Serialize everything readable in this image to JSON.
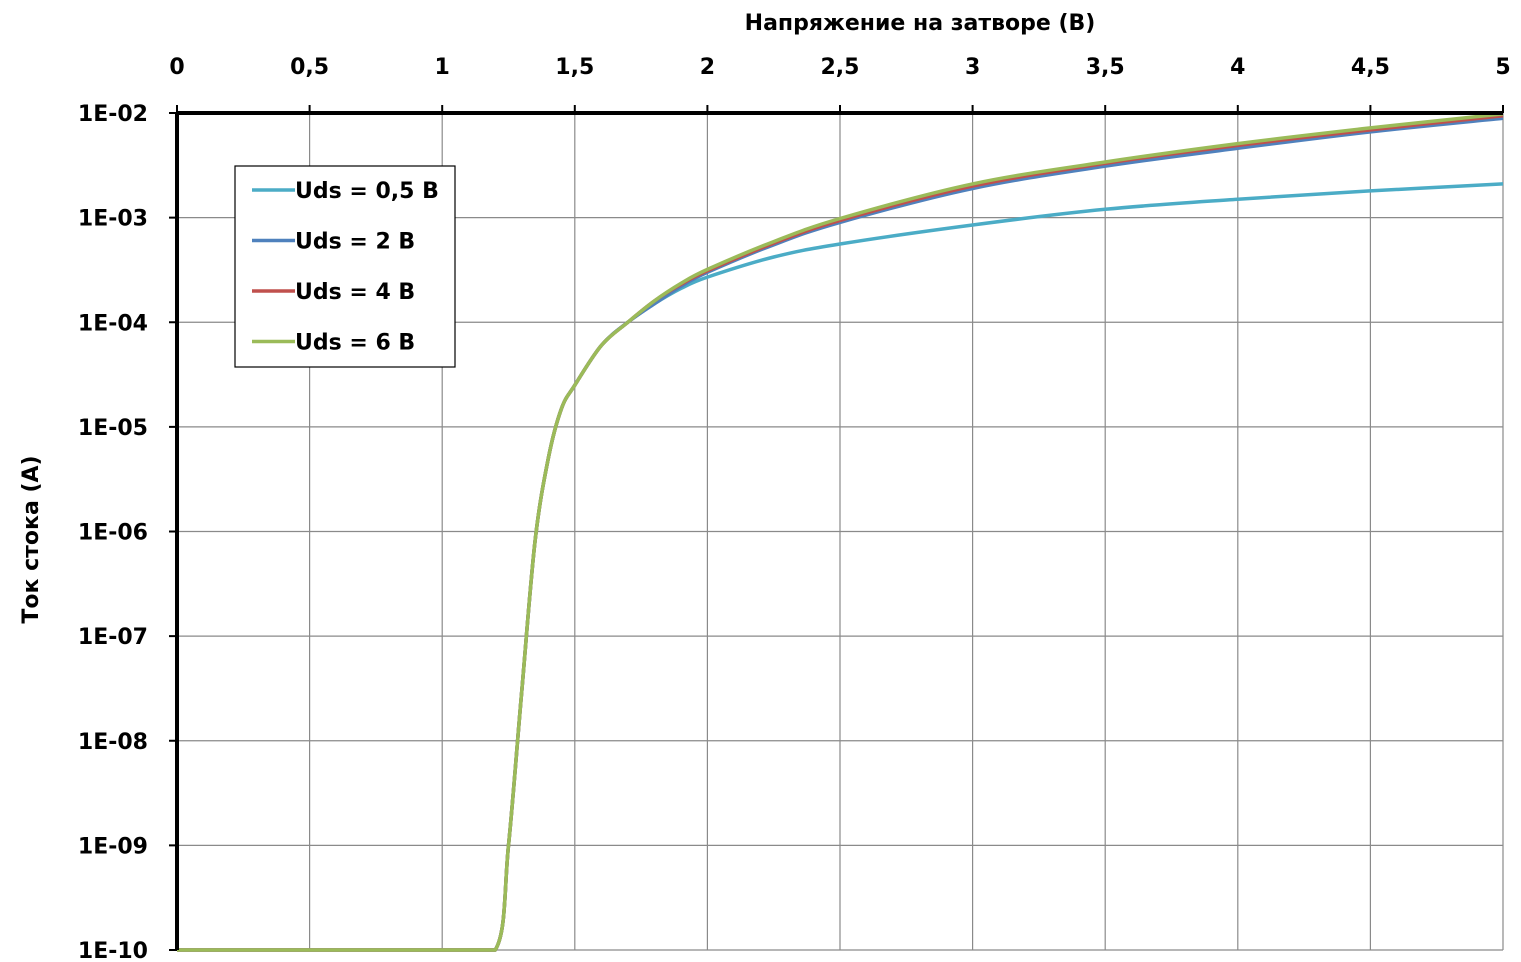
{
  "chart_data": {
    "type": "line",
    "title": "",
    "xlabel": "Напряжение на затворе (В)",
    "ylabel": "Ток стока (А)",
    "x_axis_position": "top",
    "xlim": [
      0,
      5
    ],
    "ylim": [
      1e-10,
      0.01
    ],
    "y_scale": "log",
    "grid": true,
    "legend_position": "top-left",
    "x_ticks": [
      {
        "value": 0,
        "label": "0"
      },
      {
        "value": 0.5,
        "label": "0,5"
      },
      {
        "value": 1,
        "label": "1"
      },
      {
        "value": 1.5,
        "label": "1,5"
      },
      {
        "value": 2,
        "label": "2"
      },
      {
        "value": 2.5,
        "label": "2,5"
      },
      {
        "value": 3,
        "label": "3"
      },
      {
        "value": 3.5,
        "label": "3,5"
      },
      {
        "value": 4,
        "label": "4"
      },
      {
        "value": 4.5,
        "label": "4,5"
      },
      {
        "value": 5,
        "label": "5"
      }
    ],
    "y_ticks": [
      {
        "value": 0.01,
        "label": "1E-02"
      },
      {
        "value": 0.001,
        "label": "1E-03"
      },
      {
        "value": 0.0001,
        "label": "1E-04"
      },
      {
        "value": 1e-05,
        "label": "1E-05"
      },
      {
        "value": 1e-06,
        "label": "1E-06"
      },
      {
        "value": 1e-07,
        "label": "1E-07"
      },
      {
        "value": 1e-08,
        "label": "1E-08"
      },
      {
        "value": 1e-09,
        "label": "1E-09"
      },
      {
        "value": 1e-10,
        "label": "1E-10"
      }
    ],
    "series": [
      {
        "name": "Uds = 0,5 В",
        "color": "#4bacc6",
        "x": [
          0,
          1,
          1.2,
          1.25,
          1.3,
          1.35,
          1.4,
          1.45,
          1.5,
          1.6,
          1.7,
          1.8,
          1.9,
          2.0,
          2.25,
          2.5,
          3.0,
          3.5,
          4.0,
          4.5,
          5.0
        ],
        "y": [
          1e-10,
          1e-10,
          1e-10,
          1e-09,
          3e-08,
          8e-07,
          5e-06,
          1.5e-05,
          2.5e-05,
          6e-05,
          0.0001,
          0.00015,
          0.00021,
          0.00027,
          0.00042,
          0.00056,
          0.00085,
          0.0012,
          0.0015,
          0.0018,
          0.0021
        ]
      },
      {
        "name": "Uds = 2 В",
        "color": "#4f81bd",
        "x": [
          0,
          1,
          1.2,
          1.25,
          1.3,
          1.35,
          1.4,
          1.45,
          1.5,
          1.6,
          1.7,
          1.8,
          1.9,
          2.0,
          2.25,
          2.5,
          3.0,
          3.5,
          4.0,
          4.5,
          5.0
        ],
        "y": [
          1e-10,
          1e-10,
          1e-10,
          1e-09,
          3e-08,
          8e-07,
          5e-06,
          1.5e-05,
          2.5e-05,
          6e-05,
          0.0001,
          0.00015,
          0.00022,
          0.0003,
          0.00055,
          0.0009,
          0.0019,
          0.0031,
          0.0046,
          0.0066,
          0.0089
        ]
      },
      {
        "name": "Uds = 4 В",
        "color": "#c0504d",
        "x": [
          0,
          1,
          1.2,
          1.25,
          1.3,
          1.35,
          1.4,
          1.45,
          1.5,
          1.6,
          1.7,
          1.8,
          1.9,
          2.0,
          2.25,
          2.5,
          3.0,
          3.5,
          4.0,
          4.5,
          5.0
        ],
        "y": [
          1e-10,
          1e-10,
          1e-10,
          1e-09,
          3e-08,
          8e-07,
          5e-06,
          1.5e-05,
          2.5e-05,
          6e-05,
          0.0001,
          0.00016,
          0.00023,
          0.00031,
          0.00057,
          0.00094,
          0.002,
          0.0033,
          0.0049,
          0.0069,
          0.0094
        ]
      },
      {
        "name": "Uds = 6 В",
        "color": "#9bbb59",
        "x": [
          0,
          1,
          1.2,
          1.25,
          1.3,
          1.35,
          1.4,
          1.45,
          1.5,
          1.6,
          1.7,
          1.8,
          1.9,
          2.0,
          2.25,
          2.5,
          3.0,
          3.5,
          4.0,
          4.5,
          5.0
        ],
        "y": [
          1e-10,
          1e-10,
          1e-10,
          1e-09,
          3e-08,
          8e-07,
          5e-06,
          1.5e-05,
          2.5e-05,
          6e-05,
          0.0001,
          0.00016,
          0.000235,
          0.00032,
          0.00059,
          0.00098,
          0.0021,
          0.0034,
          0.0051,
          0.0072,
          0.0098
        ]
      }
    ]
  }
}
